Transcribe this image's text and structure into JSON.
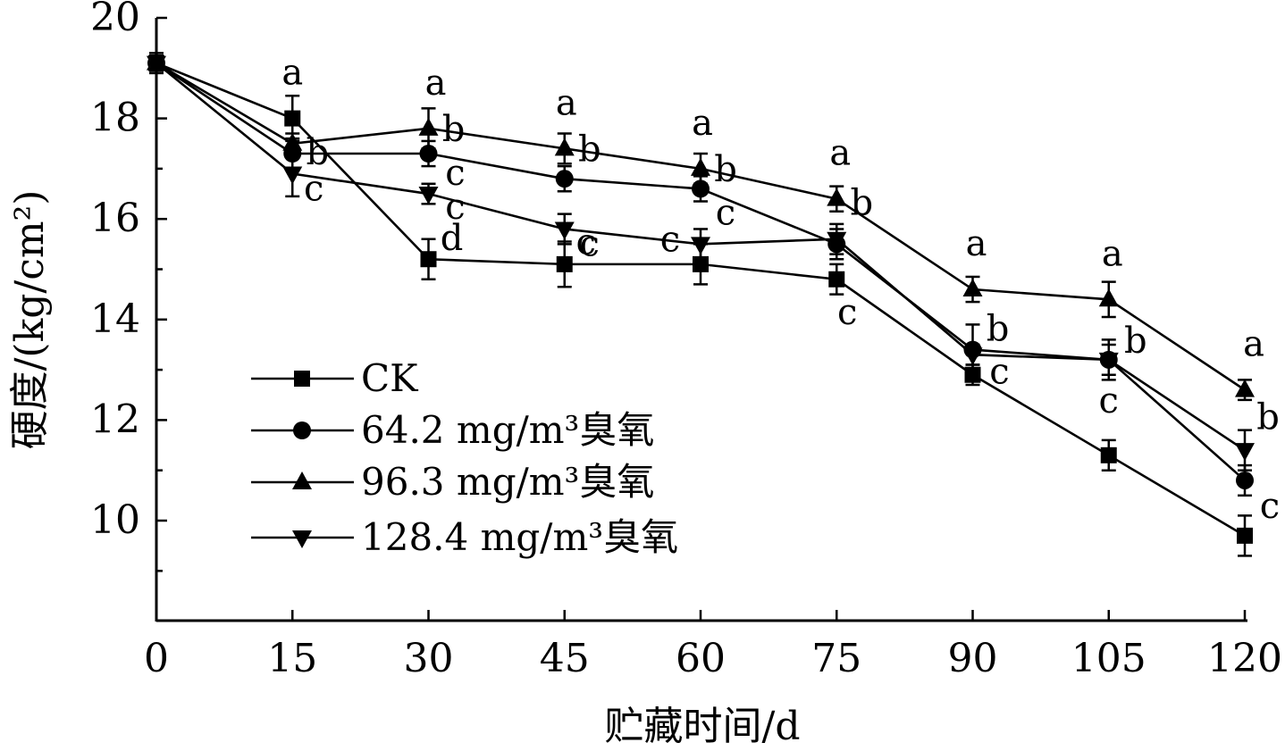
{
  "chart_data": {
    "type": "line",
    "title": "",
    "xlabel": "贮藏时间/d",
    "ylabel": "硬度/(kg/cm²)",
    "x": [
      0,
      15,
      30,
      45,
      60,
      75,
      90,
      105,
      120
    ],
    "xlim": [
      0,
      120
    ],
    "ylim": [
      8,
      20
    ],
    "x_ticks": [
      "0",
      "15",
      "30",
      "45",
      "60",
      "75",
      "90",
      "105",
      "120"
    ],
    "y_ticks": [
      "10",
      "12",
      "14",
      "16",
      "18",
      "20"
    ],
    "legend_position": "lower-left",
    "series": [
      {
        "name": "CK",
        "marker": "square",
        "values": [
          19.1,
          18.0,
          15.2,
          15.1,
          15.1,
          14.8,
          12.9,
          11.3,
          9.7
        ],
        "errors": [
          0.2,
          0.45,
          0.4,
          0.45,
          0.4,
          0.3,
          0.2,
          0.3,
          0.4
        ],
        "labels": [
          "",
          "a",
          "d",
          "",
          "",
          "c",
          "c",
          "c",
          "c"
        ]
      },
      {
        "name": "64.2 mg/m³臭氧",
        "marker": "circle",
        "values": [
          19.1,
          17.3,
          17.3,
          16.8,
          16.6,
          15.5,
          13.4,
          13.2,
          10.8
        ],
        "errors": [
          0.15,
          0.3,
          0.25,
          0.25,
          0.25,
          0.3,
          0.5,
          0.4,
          0.3
        ],
        "labels": [
          "",
          "b",
          "",
          "",
          "",
          "",
          "b",
          "b",
          ""
        ]
      },
      {
        "name": "96.3 mg/m³臭氧",
        "marker": "triangle-up",
        "values": [
          19.1,
          17.5,
          17.8,
          17.4,
          17.0,
          16.4,
          14.6,
          14.4,
          12.6
        ],
        "errors": [
          0.15,
          0.2,
          0.4,
          0.3,
          0.3,
          0.25,
          0.25,
          0.35,
          0.2
        ],
        "labels": [
          "",
          "",
          "a",
          "a",
          "a",
          "a",
          "a",
          "a",
          "a"
        ]
      },
      {
        "name": "128.4 mg/m³臭氧",
        "marker": "triangle-down",
        "values": [
          19.1,
          16.9,
          16.5,
          15.8,
          15.5,
          15.6,
          13.3,
          13.2,
          11.4
        ],
        "errors": [
          0.15,
          0.45,
          0.2,
          0.3,
          0.3,
          0.3,
          0.2,
          0.3,
          0.4
        ],
        "labels": [
          "",
          "c",
          "c",
          "c",
          "c",
          "",
          "",
          "",
          ""
        ]
      }
    ],
    "annotations": [
      {
        "x": 30,
        "text": "b"
      },
      {
        "x": 45,
        "text": "b"
      },
      {
        "x": 60,
        "text": "b"
      },
      {
        "x": 75,
        "text": "b"
      },
      {
        "x": 120,
        "text": "b"
      },
      {
        "x": 30,
        "text": "c"
      },
      {
        "x": 45,
        "text": "c"
      },
      {
        "x": 60,
        "text": "c"
      },
      {
        "x": 120,
        "text": "c"
      }
    ]
  }
}
